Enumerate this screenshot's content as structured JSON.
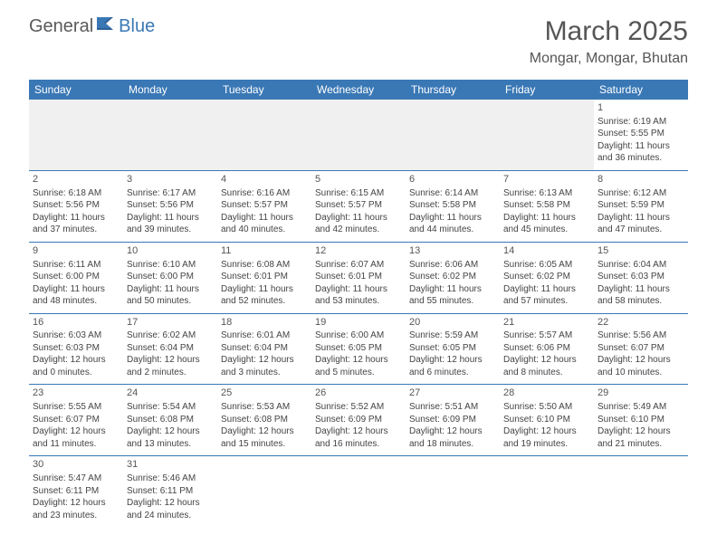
{
  "brand": {
    "part1": "General",
    "part2": "Blue"
  },
  "title": "March 2025",
  "location": "Mongar, Mongar, Bhutan",
  "colors": {
    "header_bg": "#3a78b5",
    "header_text": "#ffffff",
    "border": "#3a78b5",
    "text": "#444444",
    "bg": "#ffffff",
    "empty_bg": "#f0f0f0"
  },
  "weekdays": [
    "Sunday",
    "Monday",
    "Tuesday",
    "Wednesday",
    "Thursday",
    "Friday",
    "Saturday"
  ],
  "grid": [
    [
      null,
      null,
      null,
      null,
      null,
      null,
      {
        "n": "1",
        "sr": "Sunrise: 6:19 AM",
        "ss": "Sunset: 5:55 PM",
        "dl": "Daylight: 11 hours and 36 minutes."
      }
    ],
    [
      {
        "n": "2",
        "sr": "Sunrise: 6:18 AM",
        "ss": "Sunset: 5:56 PM",
        "dl": "Daylight: 11 hours and 37 minutes."
      },
      {
        "n": "3",
        "sr": "Sunrise: 6:17 AM",
        "ss": "Sunset: 5:56 PM",
        "dl": "Daylight: 11 hours and 39 minutes."
      },
      {
        "n": "4",
        "sr": "Sunrise: 6:16 AM",
        "ss": "Sunset: 5:57 PM",
        "dl": "Daylight: 11 hours and 40 minutes."
      },
      {
        "n": "5",
        "sr": "Sunrise: 6:15 AM",
        "ss": "Sunset: 5:57 PM",
        "dl": "Daylight: 11 hours and 42 minutes."
      },
      {
        "n": "6",
        "sr": "Sunrise: 6:14 AM",
        "ss": "Sunset: 5:58 PM",
        "dl": "Daylight: 11 hours and 44 minutes."
      },
      {
        "n": "7",
        "sr": "Sunrise: 6:13 AM",
        "ss": "Sunset: 5:58 PM",
        "dl": "Daylight: 11 hours and 45 minutes."
      },
      {
        "n": "8",
        "sr": "Sunrise: 6:12 AM",
        "ss": "Sunset: 5:59 PM",
        "dl": "Daylight: 11 hours and 47 minutes."
      }
    ],
    [
      {
        "n": "9",
        "sr": "Sunrise: 6:11 AM",
        "ss": "Sunset: 6:00 PM",
        "dl": "Daylight: 11 hours and 48 minutes."
      },
      {
        "n": "10",
        "sr": "Sunrise: 6:10 AM",
        "ss": "Sunset: 6:00 PM",
        "dl": "Daylight: 11 hours and 50 minutes."
      },
      {
        "n": "11",
        "sr": "Sunrise: 6:08 AM",
        "ss": "Sunset: 6:01 PM",
        "dl": "Daylight: 11 hours and 52 minutes."
      },
      {
        "n": "12",
        "sr": "Sunrise: 6:07 AM",
        "ss": "Sunset: 6:01 PM",
        "dl": "Daylight: 11 hours and 53 minutes."
      },
      {
        "n": "13",
        "sr": "Sunrise: 6:06 AM",
        "ss": "Sunset: 6:02 PM",
        "dl": "Daylight: 11 hours and 55 minutes."
      },
      {
        "n": "14",
        "sr": "Sunrise: 6:05 AM",
        "ss": "Sunset: 6:02 PM",
        "dl": "Daylight: 11 hours and 57 minutes."
      },
      {
        "n": "15",
        "sr": "Sunrise: 6:04 AM",
        "ss": "Sunset: 6:03 PM",
        "dl": "Daylight: 11 hours and 58 minutes."
      }
    ],
    [
      {
        "n": "16",
        "sr": "Sunrise: 6:03 AM",
        "ss": "Sunset: 6:03 PM",
        "dl": "Daylight: 12 hours and 0 minutes."
      },
      {
        "n": "17",
        "sr": "Sunrise: 6:02 AM",
        "ss": "Sunset: 6:04 PM",
        "dl": "Daylight: 12 hours and 2 minutes."
      },
      {
        "n": "18",
        "sr": "Sunrise: 6:01 AM",
        "ss": "Sunset: 6:04 PM",
        "dl": "Daylight: 12 hours and 3 minutes."
      },
      {
        "n": "19",
        "sr": "Sunrise: 6:00 AM",
        "ss": "Sunset: 6:05 PM",
        "dl": "Daylight: 12 hours and 5 minutes."
      },
      {
        "n": "20",
        "sr": "Sunrise: 5:59 AM",
        "ss": "Sunset: 6:05 PM",
        "dl": "Daylight: 12 hours and 6 minutes."
      },
      {
        "n": "21",
        "sr": "Sunrise: 5:57 AM",
        "ss": "Sunset: 6:06 PM",
        "dl": "Daylight: 12 hours and 8 minutes."
      },
      {
        "n": "22",
        "sr": "Sunrise: 5:56 AM",
        "ss": "Sunset: 6:07 PM",
        "dl": "Daylight: 12 hours and 10 minutes."
      }
    ],
    [
      {
        "n": "23",
        "sr": "Sunrise: 5:55 AM",
        "ss": "Sunset: 6:07 PM",
        "dl": "Daylight: 12 hours and 11 minutes."
      },
      {
        "n": "24",
        "sr": "Sunrise: 5:54 AM",
        "ss": "Sunset: 6:08 PM",
        "dl": "Daylight: 12 hours and 13 minutes."
      },
      {
        "n": "25",
        "sr": "Sunrise: 5:53 AM",
        "ss": "Sunset: 6:08 PM",
        "dl": "Daylight: 12 hours and 15 minutes."
      },
      {
        "n": "26",
        "sr": "Sunrise: 5:52 AM",
        "ss": "Sunset: 6:09 PM",
        "dl": "Daylight: 12 hours and 16 minutes."
      },
      {
        "n": "27",
        "sr": "Sunrise: 5:51 AM",
        "ss": "Sunset: 6:09 PM",
        "dl": "Daylight: 12 hours and 18 minutes."
      },
      {
        "n": "28",
        "sr": "Sunrise: 5:50 AM",
        "ss": "Sunset: 6:10 PM",
        "dl": "Daylight: 12 hours and 19 minutes."
      },
      {
        "n": "29",
        "sr": "Sunrise: 5:49 AM",
        "ss": "Sunset: 6:10 PM",
        "dl": "Daylight: 12 hours and 21 minutes."
      }
    ],
    [
      {
        "n": "30",
        "sr": "Sunrise: 5:47 AM",
        "ss": "Sunset: 6:11 PM",
        "dl": "Daylight: 12 hours and 23 minutes."
      },
      {
        "n": "31",
        "sr": "Sunrise: 5:46 AM",
        "ss": "Sunset: 6:11 PM",
        "dl": "Daylight: 12 hours and 24 minutes."
      },
      null,
      null,
      null,
      null,
      null
    ]
  ]
}
